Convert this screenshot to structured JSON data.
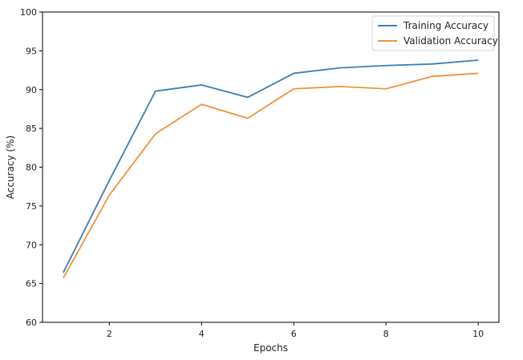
{
  "chart_data": {
    "type": "line",
    "title": "",
    "xlabel": "Epochs",
    "ylabel": "Accuracy (%)",
    "x": [
      1,
      2,
      3,
      4,
      5,
      6,
      7,
      8,
      9,
      10
    ],
    "xlim": [
      0.55,
      10.45
    ],
    "ylim": [
      60,
      100
    ],
    "xticks": [
      2,
      4,
      6,
      8,
      10
    ],
    "yticks": [
      60,
      65,
      70,
      75,
      80,
      85,
      90,
      95,
      100
    ],
    "grid": false,
    "legend_position": "top-right",
    "series": [
      {
        "name": "Training Accuracy",
        "color": "#3b7fb6",
        "values": [
          66.4,
          78.3,
          89.8,
          90.6,
          89.0,
          92.1,
          92.8,
          93.1,
          93.3,
          93.8
        ]
      },
      {
        "name": "Validation Accuracy",
        "color": "#f0923a",
        "values": [
          65.7,
          76.4,
          84.3,
          88.1,
          86.3,
          90.1,
          90.4,
          90.1,
          91.7,
          92.1
        ]
      }
    ]
  }
}
